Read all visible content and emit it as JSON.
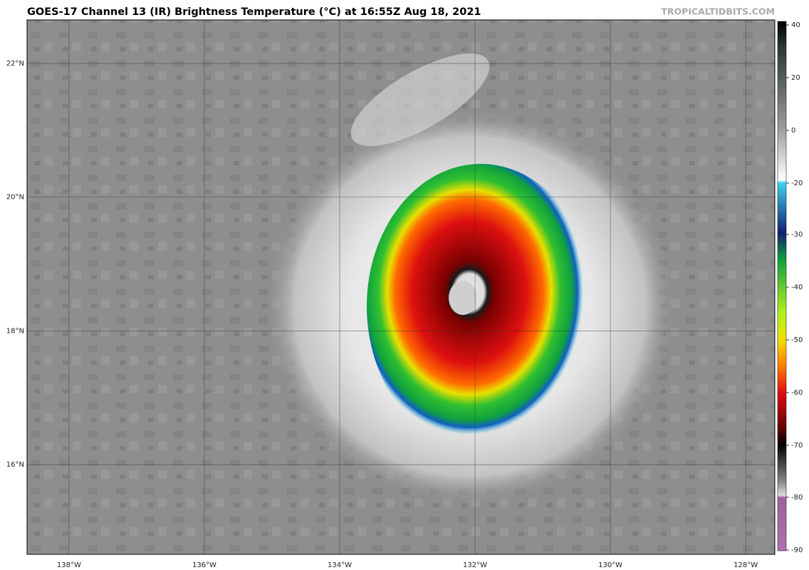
{
  "header": {
    "title": "GOES-17 Channel 13 (IR) Brightness Temperature (°C) at 16:55Z Aug 18, 2021",
    "watermark": "TROPICALTIDBITS.COM"
  },
  "map": {
    "lon_range": [
      -138.62,
      -127.57
    ],
    "lat_range": [
      14.66,
      22.65
    ],
    "lat_lines": [
      {
        "value": 22,
        "label": "22°N"
      },
      {
        "value": 20,
        "label": "20°N"
      },
      {
        "value": 18,
        "label": "18°N"
      },
      {
        "value": 16,
        "label": "16°N"
      }
    ],
    "lon_lines": [
      {
        "value": -138,
        "label": "138°W"
      },
      {
        "value": -136,
        "label": "136°W"
      },
      {
        "value": -134,
        "label": "134°W"
      },
      {
        "value": -132,
        "label": "132°W"
      },
      {
        "value": -130,
        "label": "130°W"
      },
      {
        "value": -128,
        "label": "128°W"
      }
    ]
  },
  "colorbar": {
    "ticks": [
      40,
      20,
      0,
      -20,
      -30,
      -40,
      -50,
      -60,
      -70,
      -80,
      -90
    ]
  }
}
